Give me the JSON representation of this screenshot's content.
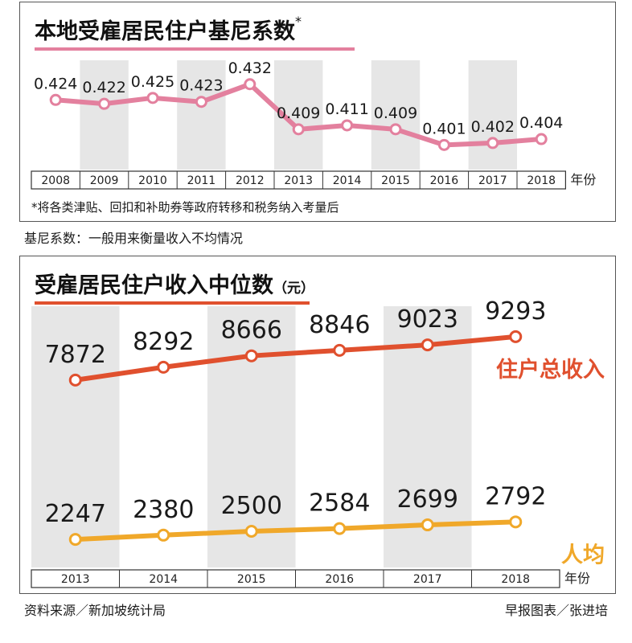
{
  "chart_data": [
    {
      "type": "line",
      "title": "本地受雇居民住户基尼系数",
      "title_marker": "*",
      "x": [
        "2008",
        "2009",
        "2010",
        "2011",
        "2012",
        "2013",
        "2014",
        "2015",
        "2016",
        "2017",
        "2018"
      ],
      "xlabel": "年份",
      "series": [
        {
          "values": [
            0.424,
            0.422,
            0.425,
            0.423,
            0.432,
            0.409,
            0.411,
            0.409,
            0.401,
            0.402,
            0.404
          ],
          "labels": [
            "0.424",
            "0.422",
            "0.425",
            "0.423",
            "0.432",
            "0.409",
            "0.411",
            "0.409",
            "0.401",
            "0.402",
            "0.404"
          ],
          "color": "#e3809e"
        }
      ],
      "ylim": [
        0.395,
        0.436
      ],
      "shaded_columns": [
        "2009",
        "2011",
        "2013",
        "2015",
        "2017"
      ],
      "footnote": "*将各类津贴、回扣和补助券等政府转移和税务纳入考量后",
      "definition": "基尼系数：一般用来衡量收入不均情况"
    },
    {
      "type": "line",
      "title": "受雇居民住户收入中位数",
      "unit": "（元）",
      "x": [
        "2013",
        "2014",
        "2015",
        "2016",
        "2017",
        "2018"
      ],
      "xlabel": "年份",
      "series": [
        {
          "name": "住户总收入",
          "values": [
            7872,
            8292,
            8666,
            8846,
            9023,
            9293
          ],
          "labels": [
            "7872",
            "8292",
            "8666",
            "8846",
            "9023",
            "9293"
          ],
          "color": "#e0502e"
        },
        {
          "name": "人均",
          "values": [
            2247,
            2380,
            2500,
            2584,
            2699,
            2792
          ],
          "labels": [
            "2247",
            "2380",
            "2500",
            "2584",
            "2699",
            "2792"
          ],
          "color": "#f0a82a"
        }
      ],
      "shaded_columns": [
        "2013",
        "2015",
        "2017"
      ]
    }
  ],
  "footer": {
    "source": "资料来源／新加坡统计局",
    "credit": "早报图表／张进培"
  },
  "colors": {
    "title_underline_1": "#e3809e",
    "title_underline_2": "#e0502e",
    "shade": "#e6e6e6"
  }
}
